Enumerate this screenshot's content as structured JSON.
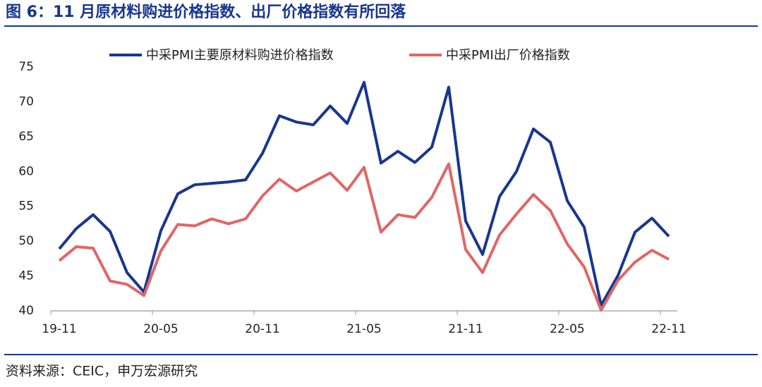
{
  "chart_data": {
    "type": "line",
    "title": "图 6：11 月原材料购进价格指数、出厂价格指数有所回落",
    "source": "资料来源：CEIC，申万宏源研究",
    "categories": [
      "19-11",
      null,
      null,
      null,
      null,
      null,
      "20-05",
      null,
      null,
      null,
      null,
      null,
      "20-11",
      null,
      null,
      null,
      null,
      null,
      "21-05",
      null,
      null,
      null,
      null,
      null,
      "21-11",
      null,
      null,
      null,
      null,
      null,
      "22-05",
      null,
      null,
      null,
      null,
      null,
      "22-11"
    ],
    "series": [
      {
        "name": "中采PMI主要原材料购进价格指数",
        "color": "#17368f",
        "values": [
          48.9,
          51.8,
          53.8,
          51.4,
          45.5,
          42.7,
          51.5,
          56.8,
          58.1,
          58.3,
          58.5,
          58.8,
          62.6,
          68.0,
          67.1,
          66.7,
          69.4,
          66.9,
          72.8,
          61.2,
          62.9,
          61.3,
          63.5,
          72.1,
          52.9,
          48.1,
          56.4,
          60.0,
          66.1,
          64.2,
          55.8,
          52.0,
          40.8,
          45.1,
          51.3,
          53.3,
          50.7
        ]
      },
      {
        "name": "中采PMI出厂价格指数",
        "color": "#e06666",
        "values": [
          47.2,
          49.2,
          49.0,
          44.3,
          43.8,
          42.2,
          48.6,
          52.4,
          52.2,
          53.2,
          52.5,
          53.2,
          56.5,
          58.9,
          57.2,
          58.5,
          59.8,
          57.3,
          60.6,
          51.3,
          53.8,
          53.4,
          56.3,
          61.1,
          48.8,
          45.5,
          50.9,
          53.9,
          56.7,
          54.4,
          49.6,
          46.3,
          40.1,
          44.4,
          47.0,
          48.7,
          47.4
        ]
      }
    ],
    "ylim": [
      40,
      75
    ],
    "yticks": [
      40,
      45,
      50,
      55,
      60,
      65,
      70,
      75
    ],
    "grid": false,
    "legend": "top"
  }
}
